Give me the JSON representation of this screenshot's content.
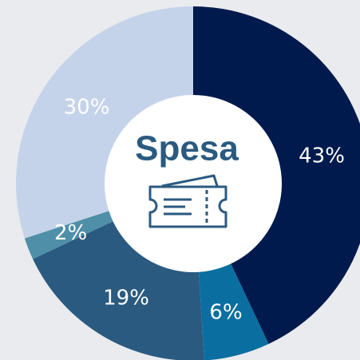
{
  "chart_data": {
    "type": "donut",
    "title": "Spesa",
    "values": [
      43,
      6,
      19,
      2,
      30
    ],
    "value_labels": [
      "43%",
      "6%",
      "19%",
      "2%",
      "30%"
    ],
    "colors": [
      "#001a4d",
      "#0a6fa0",
      "#2b5a80",
      "#4f8fa8",
      "#c5d3ea"
    ]
  }
}
